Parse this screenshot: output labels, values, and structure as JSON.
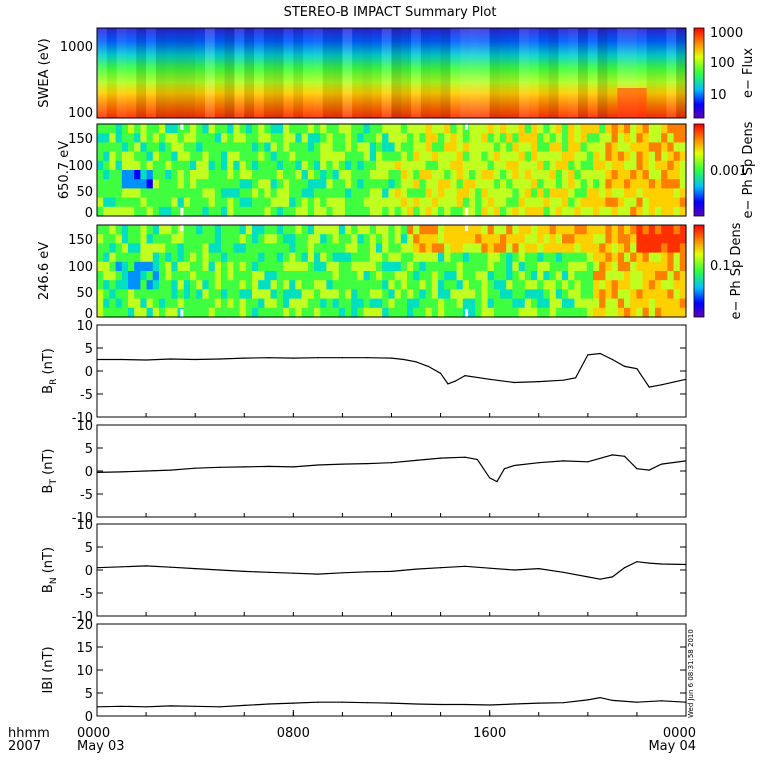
{
  "title": "STEREO-B IMPACT Summary Plot",
  "corner": {
    "line1": "hhmm",
    "line2": "2007"
  },
  "timestamp": "Wed Jun  6 08:31:58 2010",
  "colors": {
    "spectro": [
      "#0000ff",
      "#0090ff",
      "#00e0c0",
      "#40ff40",
      "#c0ff20",
      "#ffd000",
      "#ff8000",
      "#ff3000"
    ],
    "line": "#000000"
  },
  "chart_data": [
    {
      "type": "heatmap",
      "name": "swea",
      "ylabel": "SWEA (eV)",
      "yticks": [
        "1000",
        "100"
      ],
      "colorbar_label": "e− Flux",
      "colorbar_ticks": [
        "1000",
        "100",
        "10"
      ]
    },
    {
      "type": "heatmap",
      "name": "pad650",
      "ylabel": "650.7 eV",
      "yticks": [
        "150",
        "100",
        "50",
        "0"
      ],
      "colorbar_label": "e− Ph Sp Dens",
      "colorbar_ticks": [
        "0.001"
      ]
    },
    {
      "type": "heatmap",
      "name": "pad246",
      "ylabel": "246.6 eV",
      "yticks": [
        "150",
        "100",
        "50",
        "0"
      ],
      "colorbar_label": "e− Ph Sp Dens",
      "colorbar_ticks": [
        "0.1"
      ]
    },
    {
      "type": "line",
      "name": "br",
      "ylabel": "B",
      "ysub": "R",
      "yunit": "(nT)",
      "ylim": [
        -10,
        10
      ],
      "yticks": [
        10,
        5,
        0,
        -5,
        -10
      ],
      "x": [
        0,
        1,
        2,
        3,
        4,
        5,
        6,
        7,
        8,
        9,
        10,
        11,
        12,
        12.5,
        13,
        13.5,
        14,
        14.3,
        14.6,
        15,
        16,
        17,
        18,
        19,
        19.5,
        20,
        20.5,
        21,
        21.5,
        22,
        22.5,
        23,
        24
      ],
      "values": [
        2.5,
        2.5,
        2.4,
        2.6,
        2.5,
        2.6,
        2.8,
        2.9,
        2.8,
        2.9,
        2.9,
        2.9,
        2.8,
        2.5,
        2.0,
        1.0,
        -0.5,
        -2.8,
        -2.2,
        -1.0,
        -1.8,
        -2.5,
        -2.3,
        -2.0,
        -1.5,
        3.5,
        3.8,
        2.5,
        1.0,
        0.5,
        -3.5,
        -3.0,
        -1.8
      ]
    },
    {
      "type": "line",
      "name": "bt",
      "ylabel": "B",
      "ysub": "T",
      "yunit": "(nT)",
      "ylim": [
        -10,
        10
      ],
      "yticks": [
        10,
        5,
        0,
        -5,
        -10
      ],
      "x": [
        0,
        1,
        2,
        3,
        4,
        5,
        6,
        7,
        8,
        9,
        10,
        11,
        12,
        13,
        14,
        15,
        15.5,
        16,
        16.3,
        16.6,
        17,
        18,
        19,
        20,
        21,
        21.5,
        22,
        22.5,
        23,
        24
      ],
      "values": [
        -0.3,
        -0.2,
        0.0,
        0.2,
        0.6,
        0.8,
        0.9,
        1.0,
        0.9,
        1.3,
        1.5,
        1.6,
        1.8,
        2.3,
        2.8,
        3.0,
        2.5,
        -1.5,
        -2.3,
        0.5,
        1.2,
        1.8,
        2.2,
        2.0,
        3.5,
        3.2,
        0.5,
        0.2,
        1.5,
        2.2
      ]
    },
    {
      "type": "line",
      "name": "bn",
      "ylabel": "B",
      "ysub": "N",
      "yunit": "(nT)",
      "ylim": [
        -10,
        10
      ],
      "yticks": [
        10,
        5,
        0,
        -5,
        -10
      ],
      "x": [
        0,
        1,
        2,
        3,
        4,
        5,
        6,
        7,
        8,
        9,
        10,
        11,
        12,
        13,
        14,
        15,
        16,
        17,
        18,
        19,
        20,
        20.5,
        21,
        21.5,
        22,
        22.5,
        23,
        24
      ],
      "values": [
        0.5,
        0.7,
        0.9,
        0.6,
        0.3,
        0.0,
        -0.3,
        -0.5,
        -0.7,
        -0.9,
        -0.6,
        -0.4,
        -0.3,
        0.2,
        0.5,
        0.8,
        0.4,
        0.0,
        0.3,
        -0.5,
        -1.5,
        -2.0,
        -1.5,
        0.5,
        1.8,
        1.5,
        1.3,
        1.2
      ]
    },
    {
      "type": "line",
      "name": "bmag",
      "ylabel": "IBI",
      "ysub": "",
      "yunit": "(nT)",
      "ylim": [
        0,
        20
      ],
      "yticks": [
        20,
        15,
        10,
        5,
        0
      ],
      "x": [
        0,
        1,
        2,
        3,
        4,
        5,
        6,
        7,
        8,
        9,
        10,
        11,
        12,
        13,
        14,
        15,
        16,
        17,
        18,
        19,
        20,
        20.5,
        21,
        22,
        23,
        24
      ],
      "values": [
        2.0,
        2.1,
        2.0,
        2.2,
        2.1,
        2.0,
        2.3,
        2.6,
        2.8,
        3.0,
        3.0,
        2.9,
        2.8,
        2.6,
        2.5,
        2.5,
        2.4,
        2.6,
        2.8,
        2.9,
        3.5,
        4.0,
        3.4,
        3.0,
        3.3,
        3.0
      ]
    }
  ],
  "xaxis": {
    "xlim": [
      0,
      24
    ],
    "ticks": [
      {
        "x": 0,
        "label": "0000",
        "date": "May 03"
      },
      {
        "x": 8,
        "label": "0800",
        "date": ""
      },
      {
        "x": 16,
        "label": "1600",
        "date": ""
      },
      {
        "x": 24,
        "label": "0000",
        "date": "May 04"
      }
    ]
  }
}
